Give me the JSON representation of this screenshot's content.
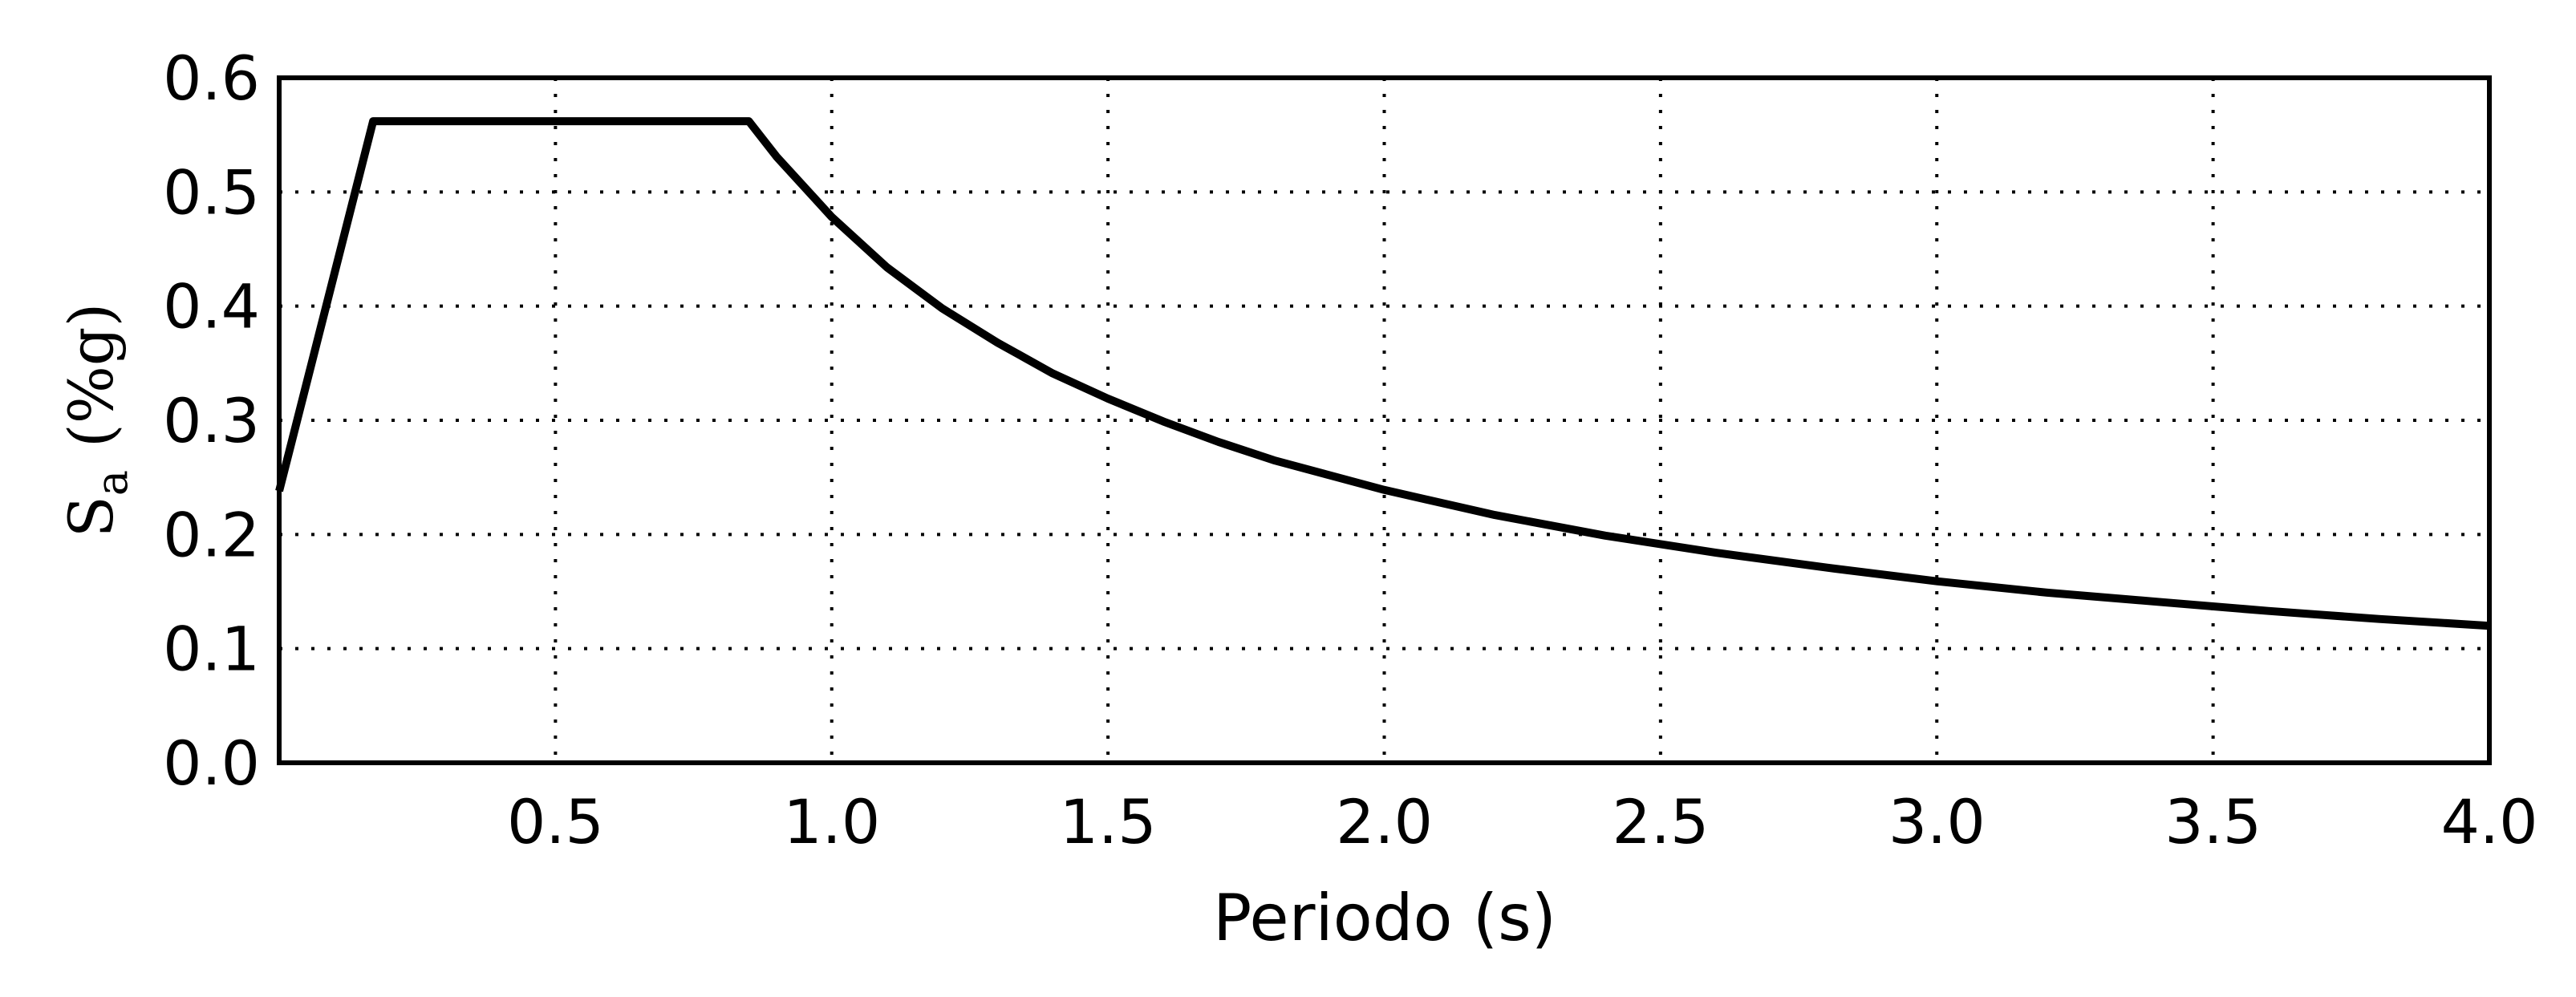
{
  "chart_data": {
    "type": "line",
    "title": "",
    "xlabel": "Periodo (s)",
    "ylabel": {
      "symbol": "S",
      "subscript": "a",
      "unit": "(%g)"
    },
    "xlim": [
      0.0,
      4.0
    ],
    "ylim": [
      0.0,
      0.6
    ],
    "xticks": [
      0.5,
      1.0,
      1.5,
      2.0,
      2.5,
      3.0,
      3.5,
      4.0
    ],
    "xtick_labels": [
      "0.5",
      "1.0",
      "1.5",
      "2.0",
      "2.5",
      "3.0",
      "3.5",
      "4.0"
    ],
    "yticks": [
      0.0,
      0.1,
      0.2,
      0.3,
      0.4,
      0.5,
      0.6
    ],
    "ytick_labels": [
      "0.0",
      "0.1",
      "0.2",
      "0.3",
      "0.4",
      "0.5",
      "0.6"
    ],
    "grid": true,
    "legend": "none",
    "line_color": "#000000",
    "series": [
      {
        "x": [
          0.0,
          0.17,
          0.85,
          0.9,
          1.0,
          1.1,
          1.2,
          1.3,
          1.4,
          1.5,
          1.6,
          1.7,
          1.8,
          1.9,
          2.0,
          2.2,
          2.4,
          2.6,
          2.8,
          3.0,
          3.2,
          3.4,
          3.6,
          3.8,
          4.0
        ],
        "y": [
          0.238,
          0.562,
          0.562,
          0.531,
          0.478,
          0.434,
          0.398,
          0.368,
          0.341,
          0.319,
          0.299,
          0.281,
          0.265,
          0.252,
          0.239,
          0.217,
          0.199,
          0.184,
          0.171,
          0.159,
          0.149,
          0.141,
          0.133,
          0.126,
          0.12
        ]
      }
    ]
  }
}
